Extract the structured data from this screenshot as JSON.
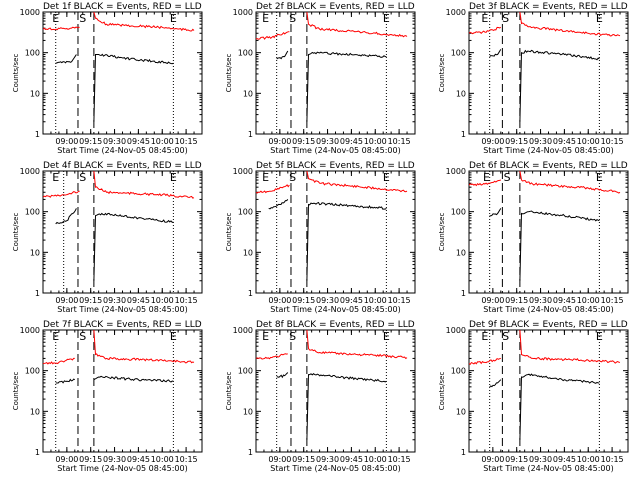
{
  "figure": {
    "x_axis_label": "Start Time (24-Nov-05 08:45:00)",
    "y_axis_label": "Counts/sec",
    "colors": {
      "events": "#000000",
      "lld": "#ff0000",
      "axes": "#000000",
      "background": "#ffffff"
    }
  },
  "chart_data": [
    {
      "type": "line",
      "title": "Det 1f BLACK = Events, RED = LLD",
      "xlabel": "Start Time (24-Nov-05 08:45:00)",
      "ylabel": "Counts/sec",
      "y_scale": "log",
      "ylim": [
        1,
        1000
      ],
      "y_tick_labels": [
        "1",
        "10",
        "100",
        "1000"
      ],
      "x_tick_labels": [
        "09:00",
        "09:15",
        "09:30",
        "09:45",
        "10:00",
        "10:15"
      ],
      "marker_labels": [
        "E",
        "S",
        "E"
      ],
      "marker_times": [
        "08:53",
        "09:10",
        "10:07"
      ],
      "dotted_lines": [
        "08:53",
        "10:07"
      ],
      "dashed_lines": [
        "09:07",
        "09:17"
      ],
      "series": [
        {
          "name": "Events",
          "color": "#000000",
          "segments": [
            {
              "x": [
                "08:53",
                "09:03",
                "09:06"
              ],
              "y": [
                55,
                60,
                90
              ]
            },
            {
              "x": [
                "09:17",
                "09:18",
                "09:20",
                "09:40",
                "10:07"
              ],
              "y": [
                2,
                90,
                90,
                70,
                55
              ]
            }
          ]
        },
        {
          "name": "LLD",
          "color": "#ff0000",
          "segments": [
            {
              "x": [
                "08:45",
                "09:00",
                "09:08"
              ],
              "y": [
                380,
                390,
                420
              ]
            },
            {
              "x": [
                "09:17",
                "09:18",
                "09:25",
                "10:00",
                "10:20"
              ],
              "y": [
                1000,
                700,
                500,
                420,
                350
              ]
            }
          ]
        }
      ]
    },
    {
      "type": "line",
      "title": "Det 2f BLACK = Events, RED = LLD",
      "xlabel": "Start Time (24-Nov-05 08:45:00)",
      "ylabel": "Counts/sec",
      "y_scale": "log",
      "ylim": [
        1,
        1000
      ],
      "y_tick_labels": [
        "1",
        "10",
        "100",
        "1000"
      ],
      "x_tick_labels": [
        "09:00",
        "09:15",
        "09:30",
        "09:45",
        "10:00",
        "10:15"
      ],
      "marker_labels": [
        "E",
        "S",
        "E"
      ],
      "marker_times": [
        "08:51",
        "09:08",
        "10:07"
      ],
      "dotted_lines": [
        "08:58",
        "10:07"
      ],
      "dashed_lines": [
        "09:07",
        "09:17"
      ],
      "series": [
        {
          "name": "Events",
          "color": "#000000",
          "segments": [
            {
              "x": [
                "08:58",
                "09:03",
                "09:05"
              ],
              "y": [
                70,
                80,
                110
              ]
            },
            {
              "x": [
                "09:17",
                "09:18",
                "09:22",
                "09:45",
                "10:07"
              ],
              "y": [
                2,
                90,
                100,
                90,
                80
              ]
            }
          ]
        },
        {
          "name": "LLD",
          "color": "#ff0000",
          "segments": [
            {
              "x": [
                "08:45",
                "08:55",
                "09:06"
              ],
              "y": [
                220,
                240,
                330
              ]
            },
            {
              "x": [
                "09:17",
                "09:18",
                "09:25",
                "10:00",
                "10:20"
              ],
              "y": [
                1000,
                500,
                380,
                300,
                250
              ]
            }
          ]
        }
      ]
    },
    {
      "type": "line",
      "title": "Det 3f BLACK = Events, RED = LLD",
      "xlabel": "Start Time (24-Nov-05 08:45:00)",
      "ylabel": "Counts/sec",
      "y_scale": "log",
      "ylim": [
        1,
        1000
      ],
      "y_tick_labels": [
        "1",
        "10",
        "100",
        "1000"
      ],
      "x_tick_labels": [
        "09:00",
        "09:15",
        "09:30",
        "09:45",
        "10:00",
        "10:15"
      ],
      "marker_labels": [
        "E",
        "S",
        "E"
      ],
      "marker_times": [
        "08:55",
        "09:08",
        "10:07"
      ],
      "dotted_lines": [
        "08:58",
        "10:07"
      ],
      "dashed_lines": [
        "09:06",
        "09:17"
      ],
      "series": [
        {
          "name": "Events",
          "color": "#000000",
          "segments": [
            {
              "x": [
                "08:58",
                "09:03",
                "09:05"
              ],
              "y": [
                80,
                90,
                120
              ]
            },
            {
              "x": [
                "09:17",
                "09:18",
                "09:22",
                "09:45",
                "10:07"
              ],
              "y": [
                2,
                100,
                110,
                90,
                70
              ]
            }
          ]
        },
        {
          "name": "LLD",
          "color": "#ff0000",
          "segments": [
            {
              "x": [
                "08:45",
                "08:55",
                "09:05"
              ],
              "y": [
                300,
                320,
                420
              ]
            },
            {
              "x": [
                "09:17",
                "09:18",
                "09:25",
                "10:00",
                "10:20"
              ],
              "y": [
                1000,
                520,
                420,
                300,
                260
              ]
            }
          ]
        }
      ]
    },
    {
      "type": "line",
      "title": "Det 4f BLACK = Events, RED = LLD",
      "xlabel": "Start Time (24-Nov-05 08:45:00)",
      "ylabel": "Counts/sec",
      "y_scale": "log",
      "ylim": [
        1,
        1000
      ],
      "y_tick_labels": [
        "1",
        "10",
        "100",
        "1000"
      ],
      "x_tick_labels": [
        "09:00",
        "09:15",
        "09:30",
        "09:45",
        "10:00",
        "10:15"
      ],
      "marker_labels": [
        "E",
        "S",
        "E"
      ],
      "marker_times": [
        "08:53",
        "09:10",
        "10:07"
      ],
      "dotted_lines": [
        "08:58",
        "10:07"
      ],
      "dashed_lines": [
        "09:07",
        "09:17"
      ],
      "series": [
        {
          "name": "Events",
          "color": "#000000",
          "segments": [
            {
              "x": [
                "08:53",
                "09:00",
                "09:06"
              ],
              "y": [
                50,
                60,
                120
              ]
            },
            {
              "x": [
                "09:17",
                "09:18",
                "09:22",
                "09:45",
                "10:07"
              ],
              "y": [
                2,
                80,
                90,
                70,
                55
              ]
            }
          ]
        },
        {
          "name": "LLD",
          "color": "#ff0000",
          "segments": [
            {
              "x": [
                "08:45",
                "08:55",
                "09:08"
              ],
              "y": [
                230,
                250,
                320
              ]
            },
            {
              "x": [
                "09:17",
                "09:18",
                "09:25",
                "10:00",
                "10:20"
              ],
              "y": [
                1000,
                400,
                300,
                260,
                220
              ]
            }
          ]
        }
      ]
    },
    {
      "type": "line",
      "title": "Det 5f BLACK = Events, RED = LLD",
      "xlabel": "Start Time (24-Nov-05 08:45:00)",
      "ylabel": "Counts/sec",
      "y_scale": "log",
      "ylim": [
        1,
        1000
      ],
      "y_tick_labels": [
        "1",
        "10",
        "100",
        "1000"
      ],
      "x_tick_labels": [
        "09:00",
        "09:15",
        "09:30",
        "09:45",
        "10:00",
        "10:15"
      ],
      "marker_labels": [
        "E",
        "S",
        "E"
      ],
      "marker_times": [
        "08:51",
        "09:08",
        "10:07"
      ],
      "dotted_lines": [
        "08:58",
        "10:07"
      ],
      "dashed_lines": [
        "09:07",
        "09:17"
      ],
      "series": [
        {
          "name": "Events",
          "color": "#000000",
          "segments": [
            {
              "x": [
                "08:53",
                "09:00",
                "09:05"
              ],
              "y": [
                120,
                150,
                200
              ]
            },
            {
              "x": [
                "09:17",
                "09:18",
                "09:22",
                "09:45",
                "10:07"
              ],
              "y": [
                2,
                150,
                160,
                140,
                120
              ]
            }
          ]
        },
        {
          "name": "LLD",
          "color": "#ff0000",
          "segments": [
            {
              "x": [
                "08:45",
                "08:55",
                "09:06"
              ],
              "y": [
                300,
                320,
                450
              ]
            },
            {
              "x": [
                "09:17",
                "09:18",
                "09:25",
                "10:00",
                "10:20"
              ],
              "y": [
                1000,
                650,
                500,
                380,
                320
              ]
            }
          ]
        }
      ]
    },
    {
      "type": "line",
      "title": "Det 6f BLACK = Events, RED = LLD",
      "xlabel": "Start Time (24-Nov-05 08:45:00)",
      "ylabel": "Counts/sec",
      "y_scale": "log",
      "ylim": [
        1,
        1000
      ],
      "y_tick_labels": [
        "1",
        "10",
        "100",
        "1000"
      ],
      "x_tick_labels": [
        "09:00",
        "09:15",
        "09:30",
        "09:45",
        "10:00",
        "10:15"
      ],
      "marker_labels": [
        "E",
        "S",
        "E"
      ],
      "marker_times": [
        "08:56",
        "09:09",
        "10:07"
      ],
      "dotted_lines": [
        "08:58",
        "10:07"
      ],
      "dashed_lines": [
        "09:06",
        "09:17"
      ],
      "series": [
        {
          "name": "Events",
          "color": "#000000",
          "segments": [
            {
              "x": [
                "08:58",
                "09:03",
                "09:05"
              ],
              "y": [
                80,
                90,
                120
              ]
            },
            {
              "x": [
                "09:17",
                "09:18",
                "09:22",
                "09:45",
                "10:07"
              ],
              "y": [
                2,
                90,
                100,
                80,
                60
              ]
            }
          ]
        },
        {
          "name": "LLD",
          "color": "#ff0000",
          "segments": [
            {
              "x": [
                "08:45",
                "08:55",
                "09:05"
              ],
              "y": [
                450,
                480,
                600
              ]
            },
            {
              "x": [
                "09:17",
                "09:18",
                "09:25",
                "10:00",
                "10:20"
              ],
              "y": [
                1000,
                600,
                480,
                380,
                300
              ]
            }
          ]
        }
      ]
    },
    {
      "type": "line",
      "title": "Det 7f BLACK = Events, RED = LLD",
      "xlabel": "Start Time (24-Nov-05 08:45:00)",
      "ylabel": "Counts/sec",
      "y_scale": "log",
      "ylim": [
        1,
        1000
      ],
      "y_tick_labels": [
        "1",
        "10",
        "100",
        "1000"
      ],
      "x_tick_labels": [
        "09:00",
        "09:15",
        "09:30",
        "09:45",
        "10:00",
        "10:15"
      ],
      "marker_labels": [
        "E",
        "S",
        "E"
      ],
      "marker_times": [
        "08:53",
        "09:10",
        "10:07"
      ],
      "dotted_lines": [
        "08:53",
        "10:07"
      ],
      "dashed_lines": [
        "09:07",
        "09:17"
      ],
      "series": [
        {
          "name": "Events",
          "color": "#000000",
          "segments": [
            {
              "x": [
                "08:53",
                "09:00",
                "09:05"
              ],
              "y": [
                50,
                55,
                60
              ]
            },
            {
              "x": [
                "09:17",
                "09:20",
                "09:45",
                "10:07"
              ],
              "y": [
                60,
                70,
                60,
                55
              ]
            }
          ]
        },
        {
          "name": "LLD",
          "color": "#ff0000",
          "segments": [
            {
              "x": [
                "08:45",
                "08:55",
                "09:05"
              ],
              "y": [
                150,
                160,
                200
              ]
            },
            {
              "x": [
                "09:17",
                "09:18",
                "09:25",
                "10:00",
                "10:20"
              ],
              "y": [
                1000,
                250,
                200,
                180,
                160
              ]
            }
          ]
        }
      ]
    },
    {
      "type": "line",
      "title": "Det 8f BLACK = Events, RED = LLD",
      "xlabel": "Start Time (24-Nov-05 08:45:00)",
      "ylabel": "Counts/sec",
      "y_scale": "log",
      "ylim": [
        1,
        1000
      ],
      "y_tick_labels": [
        "1",
        "10",
        "100",
        "1000"
      ],
      "x_tick_labels": [
        "09:00",
        "09:15",
        "09:30",
        "09:45",
        "10:00",
        "10:15"
      ],
      "marker_labels": [
        "E",
        "S",
        "E"
      ],
      "marker_times": [
        "08:51",
        "09:08",
        "10:07"
      ],
      "dotted_lines": [
        "08:58",
        "10:07"
      ],
      "dashed_lines": [
        "09:07",
        "09:17"
      ],
      "series": [
        {
          "name": "Events",
          "color": "#000000",
          "segments": [
            {
              "x": [
                "08:58",
                "09:03",
                "09:05"
              ],
              "y": [
                70,
                75,
                90
              ]
            },
            {
              "x": [
                "09:17",
                "09:18",
                "09:22",
                "09:45",
                "10:07"
              ],
              "y": [
                2,
                80,
                80,
                65,
                55
              ]
            }
          ]
        },
        {
          "name": "LLD",
          "color": "#ff0000",
          "segments": [
            {
              "x": [
                "08:45",
                "08:55",
                "09:05"
              ],
              "y": [
                200,
                210,
                260
              ]
            },
            {
              "x": [
                "09:17",
                "09:18",
                "09:25",
                "10:00",
                "10:20"
              ],
              "y": [
                1000,
                350,
                280,
                240,
                210
              ]
            }
          ]
        }
      ]
    },
    {
      "type": "line",
      "title": "Det 9f BLACK = Events, RED = LLD",
      "xlabel": "Start Time (24-Nov-05 08:45:00)",
      "ylabel": "Counts/sec",
      "y_scale": "log",
      "ylim": [
        1,
        1000
      ],
      "y_tick_labels": [
        "1",
        "10",
        "100",
        "1000"
      ],
      "x_tick_labels": [
        "09:00",
        "09:15",
        "09:30",
        "09:45",
        "10:00",
        "10:15"
      ],
      "marker_labels": [
        "E",
        "S",
        "E"
      ],
      "marker_times": [
        "08:55",
        "09:08",
        "10:07"
      ],
      "dotted_lines": [
        "08:58",
        "10:07"
      ],
      "dashed_lines": [
        "09:06",
        "09:17"
      ],
      "series": [
        {
          "name": "Events",
          "color": "#000000",
          "segments": [
            {
              "x": [
                "08:58",
                "09:03",
                "09:05"
              ],
              "y": [
                40,
                50,
                60
              ]
            },
            {
              "x": [
                "09:17",
                "09:18",
                "09:22",
                "09:45",
                "10:07"
              ],
              "y": [
                2,
                70,
                80,
                60,
                50
              ]
            }
          ]
        },
        {
          "name": "LLD",
          "color": "#ff0000",
          "segments": [
            {
              "x": [
                "08:45",
                "08:55",
                "09:05"
              ],
              "y": [
                150,
                160,
                200
              ]
            },
            {
              "x": [
                "09:17",
                "09:18",
                "09:25",
                "10:00",
                "10:20"
              ],
              "y": [
                1000,
                250,
                200,
                180,
                160
              ]
            }
          ]
        }
      ]
    }
  ]
}
